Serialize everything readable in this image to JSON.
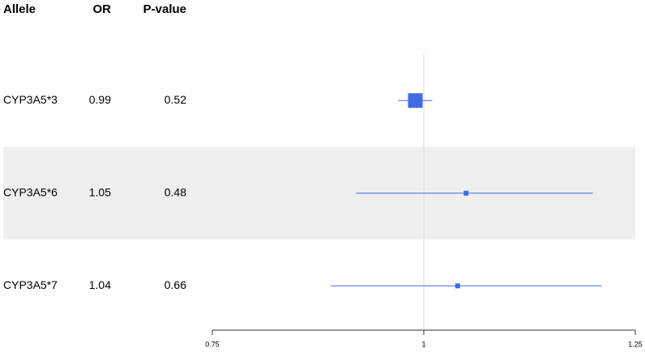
{
  "chart_data": {
    "type": "forest",
    "columns": [
      "Allele",
      "OR",
      "P-value"
    ],
    "categories": [
      "CYP3A5*3",
      "CYP3A5*6",
      "CYP3A5*7"
    ],
    "values": [
      0.99,
      1.05,
      1.04
    ],
    "p_values": [
      0.52,
      0.48,
      0.66
    ],
    "ci_lower": [
      0.97,
      0.92,
      0.89
    ],
    "ci_upper": [
      1.01,
      1.2,
      1.21
    ],
    "weights": [
      1,
      0.11,
      0.11
    ],
    "color": "#4169e1",
    "xlim": [
      0.75,
      1.25
    ],
    "xticks": [
      0.75,
      1,
      1.25
    ],
    "reference": 1
  }
}
